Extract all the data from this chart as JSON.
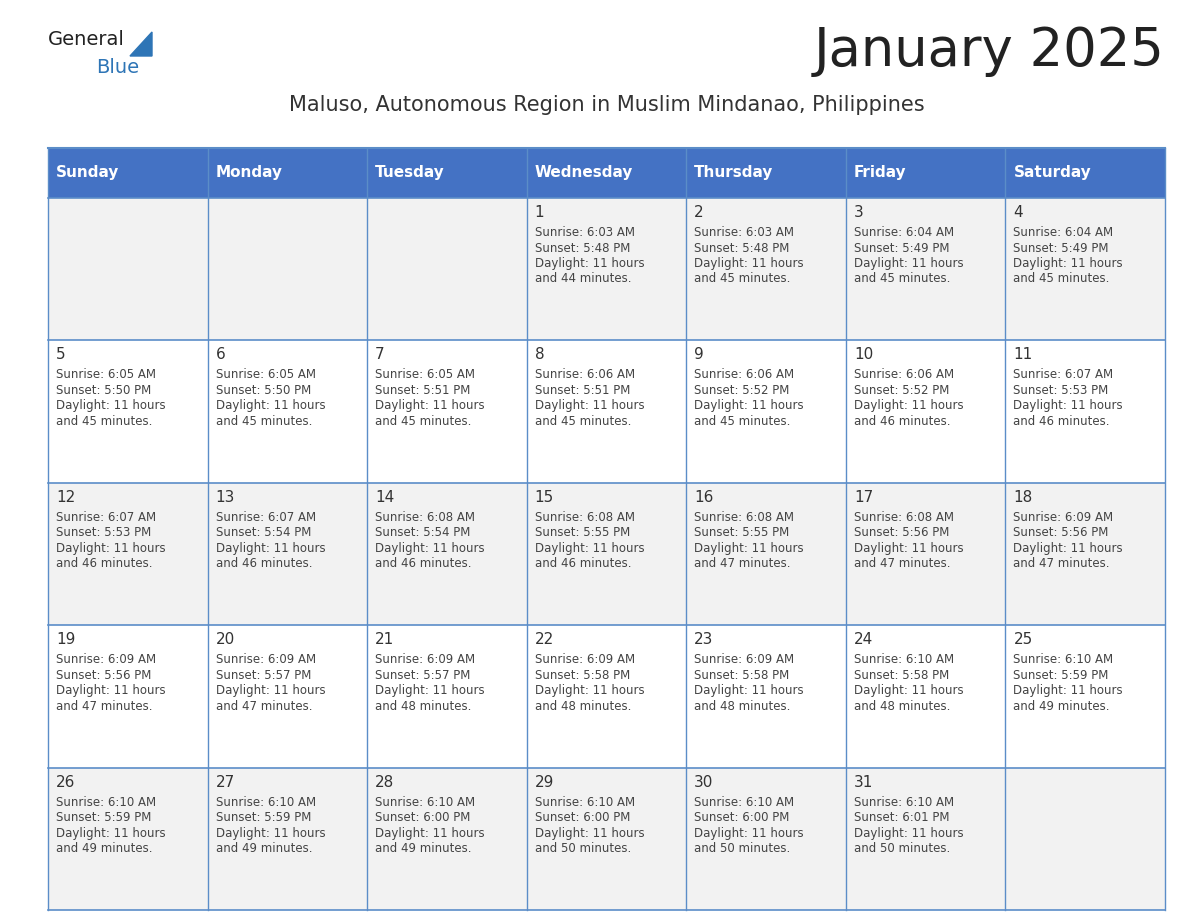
{
  "title": "January 2025",
  "subtitle": "Maluso, Autonomous Region in Muslim Mindanao, Philippines",
  "days_of_week": [
    "Sunday",
    "Monday",
    "Tuesday",
    "Wednesday",
    "Thursday",
    "Friday",
    "Saturday"
  ],
  "header_bg": "#4472C4",
  "header_text": "#FFFFFF",
  "row_bg_odd": "#F2F2F2",
  "row_bg_even": "#FFFFFF",
  "day_num_color": "#333333",
  "cell_text_color": "#444444",
  "grid_line_color": "#5B8DC8",
  "title_color": "#222222",
  "subtitle_color": "#333333",
  "logo_general_color": "#222222",
  "logo_blue_color": "#2E75B6",
  "weeks": [
    [
      {
        "day": null,
        "sunrise": null,
        "sunset": null,
        "daylight": null
      },
      {
        "day": null,
        "sunrise": null,
        "sunset": null,
        "daylight": null
      },
      {
        "day": null,
        "sunrise": null,
        "sunset": null,
        "daylight": null
      },
      {
        "day": 1,
        "sunrise": "6:03 AM",
        "sunset": "5:48 PM",
        "daylight": "11 hours\nand 44 minutes."
      },
      {
        "day": 2,
        "sunrise": "6:03 AM",
        "sunset": "5:48 PM",
        "daylight": "11 hours\nand 45 minutes."
      },
      {
        "day": 3,
        "sunrise": "6:04 AM",
        "sunset": "5:49 PM",
        "daylight": "11 hours\nand 45 minutes."
      },
      {
        "day": 4,
        "sunrise": "6:04 AM",
        "sunset": "5:49 PM",
        "daylight": "11 hours\nand 45 minutes."
      }
    ],
    [
      {
        "day": 5,
        "sunrise": "6:05 AM",
        "sunset": "5:50 PM",
        "daylight": "11 hours\nand 45 minutes."
      },
      {
        "day": 6,
        "sunrise": "6:05 AM",
        "sunset": "5:50 PM",
        "daylight": "11 hours\nand 45 minutes."
      },
      {
        "day": 7,
        "sunrise": "6:05 AM",
        "sunset": "5:51 PM",
        "daylight": "11 hours\nand 45 minutes."
      },
      {
        "day": 8,
        "sunrise": "6:06 AM",
        "sunset": "5:51 PM",
        "daylight": "11 hours\nand 45 minutes."
      },
      {
        "day": 9,
        "sunrise": "6:06 AM",
        "sunset": "5:52 PM",
        "daylight": "11 hours\nand 45 minutes."
      },
      {
        "day": 10,
        "sunrise": "6:06 AM",
        "sunset": "5:52 PM",
        "daylight": "11 hours\nand 46 minutes."
      },
      {
        "day": 11,
        "sunrise": "6:07 AM",
        "sunset": "5:53 PM",
        "daylight": "11 hours\nand 46 minutes."
      }
    ],
    [
      {
        "day": 12,
        "sunrise": "6:07 AM",
        "sunset": "5:53 PM",
        "daylight": "11 hours\nand 46 minutes."
      },
      {
        "day": 13,
        "sunrise": "6:07 AM",
        "sunset": "5:54 PM",
        "daylight": "11 hours\nand 46 minutes."
      },
      {
        "day": 14,
        "sunrise": "6:08 AM",
        "sunset": "5:54 PM",
        "daylight": "11 hours\nand 46 minutes."
      },
      {
        "day": 15,
        "sunrise": "6:08 AM",
        "sunset": "5:55 PM",
        "daylight": "11 hours\nand 46 minutes."
      },
      {
        "day": 16,
        "sunrise": "6:08 AM",
        "sunset": "5:55 PM",
        "daylight": "11 hours\nand 47 minutes."
      },
      {
        "day": 17,
        "sunrise": "6:08 AM",
        "sunset": "5:56 PM",
        "daylight": "11 hours\nand 47 minutes."
      },
      {
        "day": 18,
        "sunrise": "6:09 AM",
        "sunset": "5:56 PM",
        "daylight": "11 hours\nand 47 minutes."
      }
    ],
    [
      {
        "day": 19,
        "sunrise": "6:09 AM",
        "sunset": "5:56 PM",
        "daylight": "11 hours\nand 47 minutes."
      },
      {
        "day": 20,
        "sunrise": "6:09 AM",
        "sunset": "5:57 PM",
        "daylight": "11 hours\nand 47 minutes."
      },
      {
        "day": 21,
        "sunrise": "6:09 AM",
        "sunset": "5:57 PM",
        "daylight": "11 hours\nand 48 minutes."
      },
      {
        "day": 22,
        "sunrise": "6:09 AM",
        "sunset": "5:58 PM",
        "daylight": "11 hours\nand 48 minutes."
      },
      {
        "day": 23,
        "sunrise": "6:09 AM",
        "sunset": "5:58 PM",
        "daylight": "11 hours\nand 48 minutes."
      },
      {
        "day": 24,
        "sunrise": "6:10 AM",
        "sunset": "5:58 PM",
        "daylight": "11 hours\nand 48 minutes."
      },
      {
        "day": 25,
        "sunrise": "6:10 AM",
        "sunset": "5:59 PM",
        "daylight": "11 hours\nand 49 minutes."
      }
    ],
    [
      {
        "day": 26,
        "sunrise": "6:10 AM",
        "sunset": "5:59 PM",
        "daylight": "11 hours\nand 49 minutes."
      },
      {
        "day": 27,
        "sunrise": "6:10 AM",
        "sunset": "5:59 PM",
        "daylight": "11 hours\nand 49 minutes."
      },
      {
        "day": 28,
        "sunrise": "6:10 AM",
        "sunset": "6:00 PM",
        "daylight": "11 hours\nand 49 minutes."
      },
      {
        "day": 29,
        "sunrise": "6:10 AM",
        "sunset": "6:00 PM",
        "daylight": "11 hours\nand 50 minutes."
      },
      {
        "day": 30,
        "sunrise": "6:10 AM",
        "sunset": "6:00 PM",
        "daylight": "11 hours\nand 50 minutes."
      },
      {
        "day": 31,
        "sunrise": "6:10 AM",
        "sunset": "6:01 PM",
        "daylight": "11 hours\nand 50 minutes."
      },
      {
        "day": null,
        "sunrise": null,
        "sunset": null,
        "daylight": null
      }
    ]
  ]
}
